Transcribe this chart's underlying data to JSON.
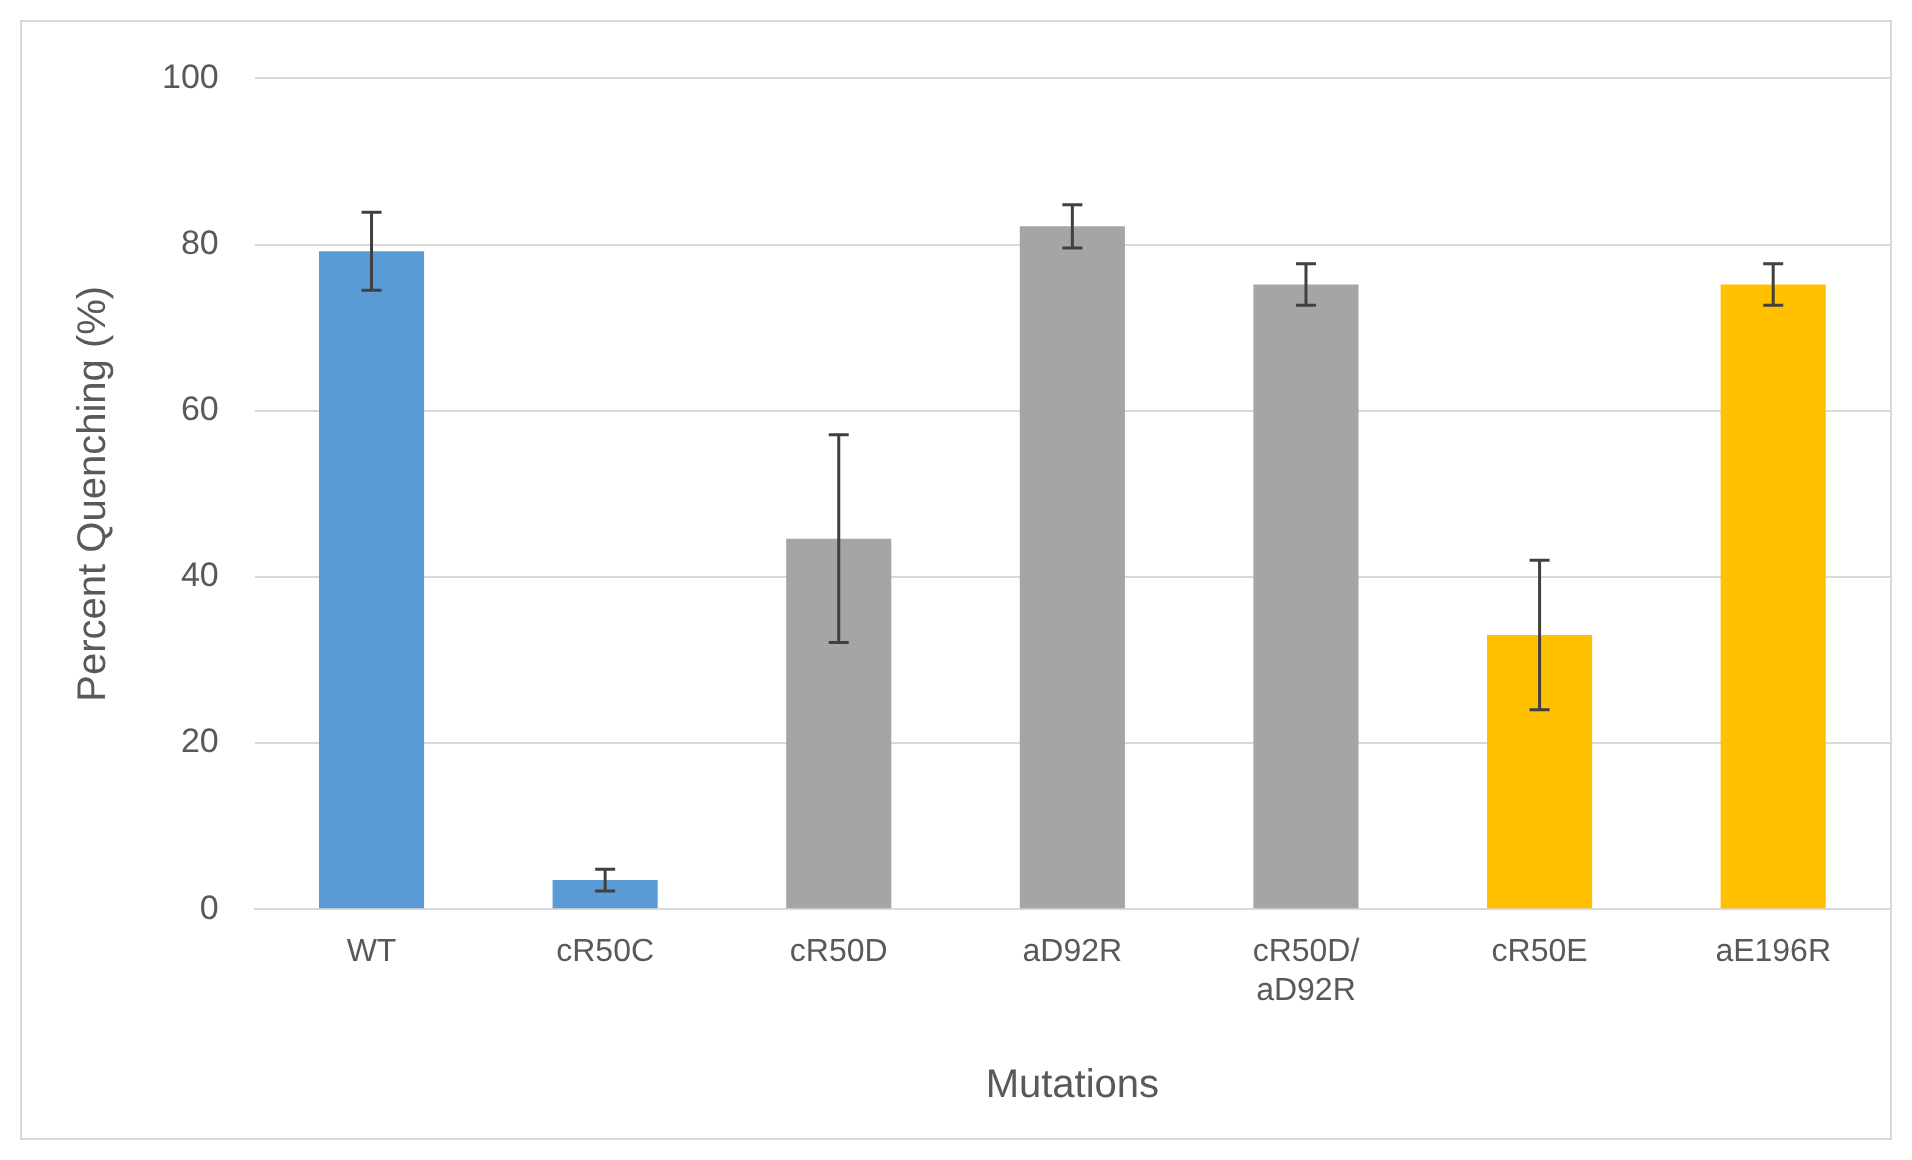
{
  "chart_data": {
    "type": "bar",
    "xlabel": "Mutations",
    "ylabel": "Percent Quenching (%)",
    "categories": [
      "WT",
      "cR50C",
      "cR50D",
      "aD92R",
      "cR50D/aD92R",
      "cR50E",
      "aE196R"
    ],
    "values": [
      79.2,
      3.5,
      44.6,
      82.2,
      75.2,
      33,
      75.2
    ],
    "colors": [
      "#5b9bd5",
      "#5b9bd5",
      "#a5a5a5",
      "#a5a5a5",
      "#a5a5a5",
      "#ffc000",
      "#ffc000"
    ],
    "errors": [
      4.7,
      1.3,
      12.5,
      2.6,
      2.5,
      9,
      2.5
    ],
    "ylim": [
      0,
      100
    ],
    "yticks": [
      0,
      20,
      40,
      60,
      80,
      100
    ],
    "grid": "y",
    "legend": false
  }
}
